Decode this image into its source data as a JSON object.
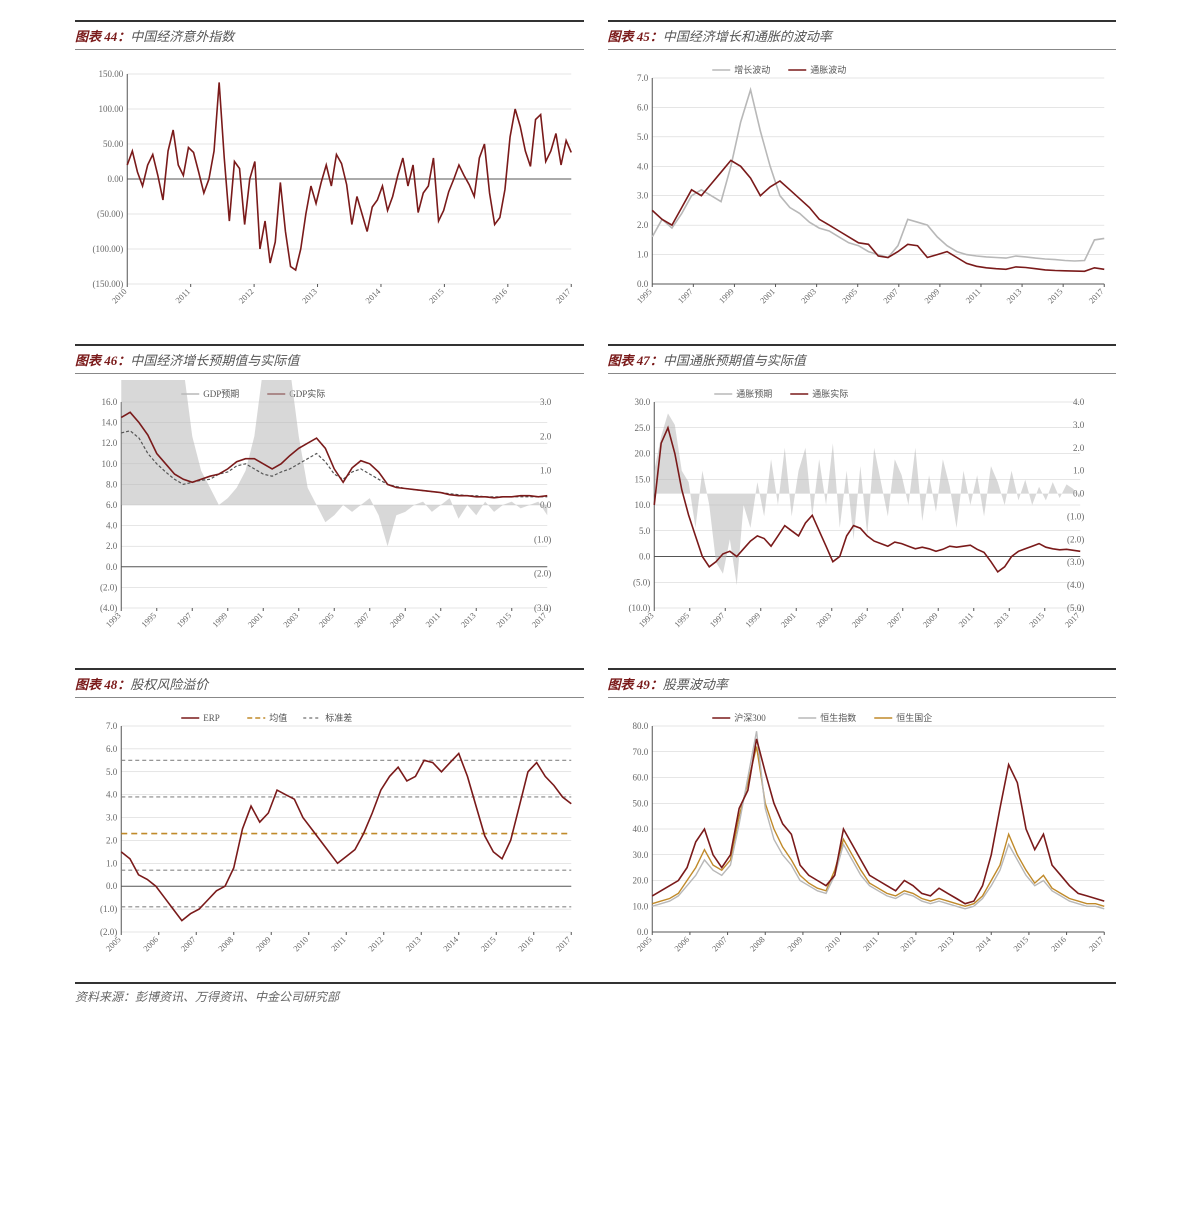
{
  "colors": {
    "dark_red": "#7a1a1a",
    "grey": "#b8b8b8",
    "gold": "#c08a2a",
    "grid": "#cccccc",
    "axis": "#555555",
    "text": "#666666",
    "bg": "#ffffff"
  },
  "source_text": "资料来源：彭博资讯、万得资讯、中金公司研究部",
  "charts": {
    "c44": {
      "title_prefix": "图表 44：",
      "title": "中国经济意外指数",
      "yticks": [
        -150,
        -100,
        -50,
        0,
        50,
        100,
        150
      ],
      "ylabels": [
        "(150.00)",
        "(100.00)",
        "(50.00)",
        "0.00",
        "50.00",
        "100.00",
        "150.00"
      ],
      "ylim": [
        -150,
        150
      ],
      "xticks_labels": [
        "2010",
        "2011",
        "2012",
        "2013",
        "2014",
        "2015",
        "2016",
        "2017"
      ],
      "series_red": [
        20,
        40,
        10,
        -10,
        20,
        35,
        5,
        -30,
        40,
        70,
        20,
        5,
        45,
        38,
        10,
        -20,
        0,
        40,
        138,
        30,
        -60,
        25,
        15,
        -65,
        0,
        25,
        -100,
        -60,
        -120,
        -90,
        -5,
        -75,
        -125,
        -130,
        -100,
        -50,
        -10,
        -35,
        -5,
        20,
        -10,
        35,
        22,
        -8,
        -65,
        -25,
        -50,
        -75,
        -40,
        -30,
        -10,
        -45,
        -25,
        5,
        30,
        -10,
        20,
        -48,
        -20,
        -10,
        30,
        -60,
        -45,
        -18,
        0,
        20,
        5,
        -8,
        -25,
        30,
        50,
        -20,
        -65,
        -55,
        -15,
        60,
        100,
        75,
        40,
        18,
        85,
        92,
        25,
        40,
        65,
        20,
        55,
        38
      ]
    },
    "c45": {
      "title_prefix": "图表 45：",
      "title": "中国经济增长和通胀的波动率",
      "legend": [
        "增长波动",
        "通胀波动"
      ],
      "yticks": [
        0,
        1,
        2,
        3,
        4,
        5,
        6,
        7
      ],
      "ylabels": [
        "0.0",
        "1.0",
        "2.0",
        "3.0",
        "4.0",
        "5.0",
        "6.0",
        "7.0"
      ],
      "ylim": [
        0,
        7
      ],
      "xticks_labels": [
        "1995",
        "1997",
        "1999",
        "2001",
        "2003",
        "2005",
        "2007",
        "2009",
        "2011",
        "2013",
        "2015",
        "2017"
      ],
      "series_grey": [
        1.6,
        2.2,
        1.9,
        2.4,
        3.0,
        3.2,
        3.0,
        2.8,
        4.0,
        5.5,
        6.6,
        5.2,
        4.0,
        3.0,
        2.6,
        2.4,
        2.1,
        1.9,
        1.8,
        1.6,
        1.4,
        1.3,
        1.1,
        1.0,
        0.9,
        1.3,
        2.2,
        2.1,
        2.0,
        1.6,
        1.3,
        1.1,
        1.0,
        0.95,
        0.92,
        0.9,
        0.88,
        0.95,
        0.92,
        0.88,
        0.85,
        0.83,
        0.8,
        0.78,
        0.8,
        1.5,
        1.55
      ],
      "series_red": [
        2.5,
        2.2,
        2.0,
        2.6,
        3.2,
        3.0,
        3.4,
        3.8,
        4.2,
        4.0,
        3.6,
        3.0,
        3.3,
        3.5,
        3.2,
        2.9,
        2.6,
        2.2,
        2.0,
        1.8,
        1.6,
        1.4,
        1.35,
        0.95,
        0.9,
        1.1,
        1.35,
        1.3,
        0.9,
        1.0,
        1.1,
        0.9,
        0.7,
        0.6,
        0.55,
        0.52,
        0.5,
        0.58,
        0.56,
        0.52,
        0.48,
        0.46,
        0.45,
        0.44,
        0.43,
        0.55,
        0.5
      ]
    },
    "c46": {
      "title_prefix": "图表 46：",
      "title": "中国经济增长预期值与实际值",
      "legend": [
        "GDP预期",
        "GDP实际"
      ],
      "yticks": [
        -4,
        -2,
        0,
        2,
        4,
        6,
        8,
        10,
        12,
        14,
        16
      ],
      "ylabels": [
        "(4.0)",
        "(2.0)",
        "0.0",
        "2.0",
        "4.0",
        "6.0",
        "8.0",
        "10.0",
        "12.0",
        "14.0",
        "16.0"
      ],
      "y2ticks": [
        -3,
        -2,
        -1,
        0,
        1,
        2,
        3
      ],
      "y2labels": [
        "(3.0)",
        "(2.0)",
        "(1.0)",
        "0.0",
        "1.0",
        "2.0",
        "3.0"
      ],
      "ylim": [
        -4,
        16
      ],
      "y2lim": [
        -3,
        3
      ],
      "xticks_labels": [
        "1993",
        "1995",
        "1997",
        "1999",
        "2001",
        "2003",
        "2005",
        "2007",
        "2009",
        "2011",
        "2013",
        "2015",
        "2017"
      ],
      "area_grey": [
        12,
        14,
        13.5,
        12,
        9,
        8,
        6,
        4,
        2,
        1,
        0.5,
        0,
        0.2,
        0.5,
        1,
        2,
        4,
        5.5,
        5,
        4,
        2,
        0.5,
        0,
        -0.5,
        -0.3,
        0,
        -0.2,
        0,
        0.2,
        -0.3,
        -1.2,
        -0.3,
        -0.2,
        0,
        0.1,
        -0.2,
        0,
        0.2,
        -0.4,
        0,
        -0.3,
        0.1,
        -0.2,
        0,
        0.1,
        -0.1,
        0,
        0.1,
        -0.3
      ],
      "line_dash": [
        13,
        13.2,
        12.5,
        11,
        10,
        9.2,
        8.5,
        8,
        8.2,
        8.4,
        8.5,
        9,
        9.2,
        9.8,
        10,
        9.5,
        9,
        8.8,
        9.2,
        9.5,
        10,
        10.5,
        11,
        10.2,
        9,
        8.5,
        9.2,
        9.5,
        9,
        8.5,
        8,
        7.8,
        7.6,
        7.5,
        7.4,
        7.3,
        7.2,
        7.1,
        7,
        6.9,
        6.9,
        6.8,
        6.8,
        6.8,
        6.8,
        6.8,
        6.8,
        6.8,
        6.8
      ],
      "line_red": [
        14.5,
        15,
        14,
        12.8,
        11,
        10,
        9,
        8.5,
        8.2,
        8.5,
        8.8,
        9,
        9.5,
        10.2,
        10.5,
        10.5,
        10,
        9.5,
        10,
        10.8,
        11.5,
        12,
        12.5,
        11.5,
        9.5,
        8.2,
        9.6,
        10.3,
        10,
        9.2,
        8,
        7.7,
        7.6,
        7.5,
        7.4,
        7.3,
        7.2,
        7.0,
        6.9,
        6.9,
        6.8,
        6.8,
        6.7,
        6.8,
        6.8,
        6.9,
        6.9,
        6.8,
        6.9
      ]
    },
    "c47": {
      "title_prefix": "图表 47：",
      "title": "中国通胀预期值与实际值",
      "legend": [
        "通胀预期",
        "通胀实际"
      ],
      "yticks": [
        -10,
        -5,
        0,
        5,
        10,
        15,
        20,
        25,
        30
      ],
      "ylabels": [
        "(10.0)",
        "(5.0)",
        "0.0",
        "5.0",
        "10.0",
        "15.0",
        "20.0",
        "25.0",
        "30.0"
      ],
      "y2ticks": [
        -5,
        -4,
        -3,
        -2,
        -1,
        0,
        1,
        2,
        3,
        4
      ],
      "y2labels": [
        "(5.0)",
        "(4.0)",
        "(3.0)",
        "(2.0)",
        "(1.0)",
        "0.0",
        "1.0",
        "2.0",
        "3.0",
        "4.0"
      ],
      "ylim": [
        -10,
        30
      ],
      "y2lim": [
        -5,
        4
      ],
      "xticks_labels": [
        "1993",
        "1995",
        "1997",
        "1999",
        "2001",
        "2003",
        "2005",
        "2007",
        "2009",
        "2011",
        "2013",
        "2015",
        "2017"
      ],
      "area_grey": [
        1,
        2.5,
        3.5,
        3,
        1,
        0.5,
        -1.5,
        1,
        -0.5,
        -3,
        -3.5,
        -2,
        -4,
        -0.5,
        -1.5,
        0.5,
        -1,
        1.5,
        -0.5,
        2,
        -1,
        1,
        2,
        -1,
        1.5,
        -0.5,
        2.2,
        -1.5,
        1,
        -2,
        1.2,
        -1.8,
        2,
        0.5,
        -1,
        1.5,
        0.8,
        -0.5,
        2,
        -1.2,
        0.8,
        -0.8,
        1.5,
        0.3,
        -1.5,
        1,
        -0.5,
        0.8,
        -1,
        1.2,
        0.5,
        -0.5,
        1,
        -0.3,
        0.6,
        -0.5,
        0.3,
        -0.3,
        0.5,
        -0.2,
        0.4,
        0.2,
        -0.2
      ],
      "line_red": [
        10,
        22,
        25,
        20,
        13,
        8,
        4,
        0,
        -2,
        -1,
        0.5,
        1,
        0,
        1.5,
        3,
        4,
        3.5,
        2,
        4,
        6,
        5,
        4,
        6.5,
        8,
        5,
        2,
        -1,
        0,
        4,
        6,
        5.5,
        4,
        3,
        2.5,
        2,
        2.8,
        2.5,
        2,
        1.5,
        1.8,
        1.5,
        1,
        1.4,
        2,
        1.8,
        2,
        2.2,
        1.4,
        0.8,
        -1,
        -3,
        -2,
        0,
        1,
        1.5,
        2,
        2.5,
        1.8,
        1.5,
        1.3,
        1.4,
        1.2,
        1.0
      ]
    },
    "c48": {
      "title_prefix": "图表 48：",
      "title": "股权风险溢价",
      "legend": [
        "ERP",
        "均值",
        "标准差"
      ],
      "yticks": [
        -2,
        -1,
        0,
        1,
        2,
        3,
        4,
        5,
        6,
        7
      ],
      "ylabels": [
        "(2.0)",
        "(1.0)",
        "0.0",
        "1.0",
        "2.0",
        "3.0",
        "4.0",
        "5.0",
        "6.0",
        "7.0"
      ],
      "ylim": [
        -2,
        7
      ],
      "xticks_labels": [
        "2005",
        "2006",
        "2007",
        "2008",
        "2009",
        "2010",
        "2011",
        "2012",
        "2013",
        "2014",
        "2015",
        "2016",
        "2017"
      ],
      "mean": 2.3,
      "std": 1.6,
      "series_red": [
        1.5,
        1.2,
        0.5,
        0.3,
        0,
        -0.5,
        -1,
        -1.5,
        -1.2,
        -1,
        -0.6,
        -0.2,
        0,
        0.8,
        2.5,
        3.5,
        2.8,
        3.2,
        4.2,
        4,
        3.8,
        3,
        2.5,
        2,
        1.5,
        1,
        1.3,
        1.6,
        2.3,
        3.2,
        4.2,
        4.8,
        5.2,
        4.6,
        4.8,
        5.5,
        5.4,
        5,
        5.4,
        5.8,
        4.8,
        3.5,
        2.2,
        1.5,
        1.2,
        2,
        3.5,
        5,
        5.4,
        4.8,
        4.4,
        3.9,
        3.6
      ]
    },
    "c49": {
      "title_prefix": "图表 49：",
      "title": "股票波动率",
      "legend": [
        "沪深300",
        "恒生指数",
        "恒生国企"
      ],
      "yticks": [
        0,
        10,
        20,
        30,
        40,
        50,
        60,
        70,
        80
      ],
      "ylabels": [
        "0.0",
        "10.0",
        "20.0",
        "30.0",
        "40.0",
        "50.0",
        "60.0",
        "70.0",
        "80.0"
      ],
      "ylim": [
        0,
        80
      ],
      "xticks_labels": [
        "2005",
        "2006",
        "2007",
        "2008",
        "2009",
        "2010",
        "2011",
        "2012",
        "2013",
        "2014",
        "2015",
        "2016",
        "2017"
      ],
      "series_red": [
        14,
        16,
        18,
        20,
        25,
        35,
        40,
        30,
        25,
        30,
        48,
        55,
        75,
        62,
        50,
        42,
        38,
        26,
        22,
        20,
        18,
        22,
        40,
        34,
        28,
        22,
        20,
        18,
        16,
        20,
        18,
        15,
        14,
        17,
        15,
        13,
        11,
        12,
        18,
        30,
        48,
        65,
        58,
        40,
        32,
        38,
        26,
        22,
        18,
        15,
        14,
        13,
        12
      ],
      "series_grey": [
        10,
        11,
        12,
        14,
        18,
        22,
        28,
        24,
        22,
        26,
        42,
        60,
        78,
        48,
        36,
        30,
        26,
        20,
        18,
        16,
        15,
        22,
        34,
        28,
        22,
        18,
        16,
        14,
        13,
        15,
        14,
        12,
        11,
        12,
        11,
        10,
        9,
        10,
        13,
        18,
        24,
        34,
        28,
        22,
        18,
        20,
        16,
        14,
        12,
        11,
        10,
        10,
        9
      ],
      "series_gold": [
        11,
        12,
        13,
        15,
        20,
        25,
        32,
        26,
        24,
        28,
        45,
        58,
        72,
        50,
        40,
        33,
        28,
        22,
        19,
        17,
        16,
        24,
        36,
        30,
        24,
        19,
        17,
        15,
        14,
        16,
        15,
        13,
        12,
        13,
        12,
        11,
        10,
        11,
        14,
        20,
        26,
        38,
        30,
        24,
        19,
        22,
        17,
        15,
        13,
        12,
        11,
        11,
        10
      ]
    }
  }
}
